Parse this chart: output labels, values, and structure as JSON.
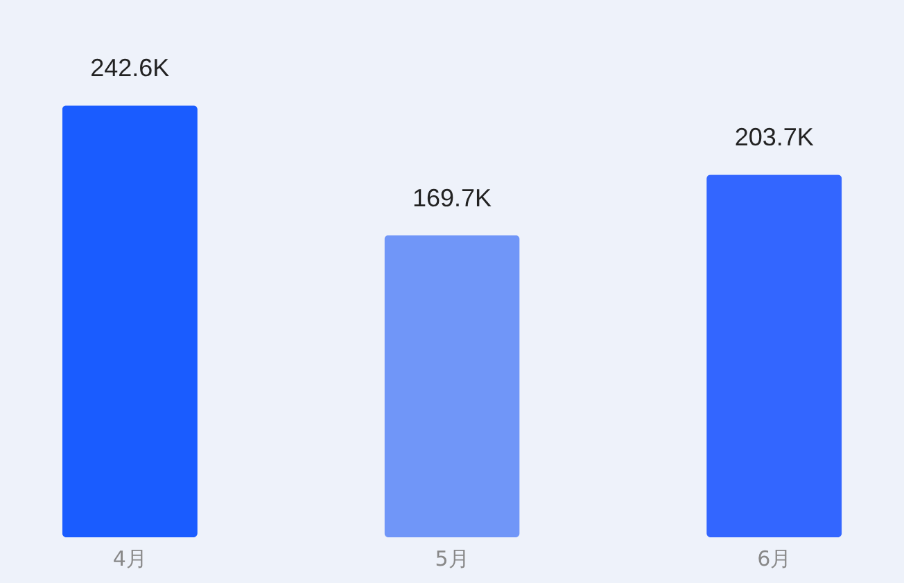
{
  "chart_data": {
    "type": "bar",
    "tick_labels": "x",
    "categories": [
      "4月",
      "5月",
      "6月"
    ],
    "values": [
      242.6,
      169.7,
      203.7
    ],
    "colors": [
      "#1a5cff",
      "#7096f8",
      "#3366ff"
    ],
    "value_labels": [
      "242.6K",
      "169.7K",
      "203.7K"
    ]
  }
}
